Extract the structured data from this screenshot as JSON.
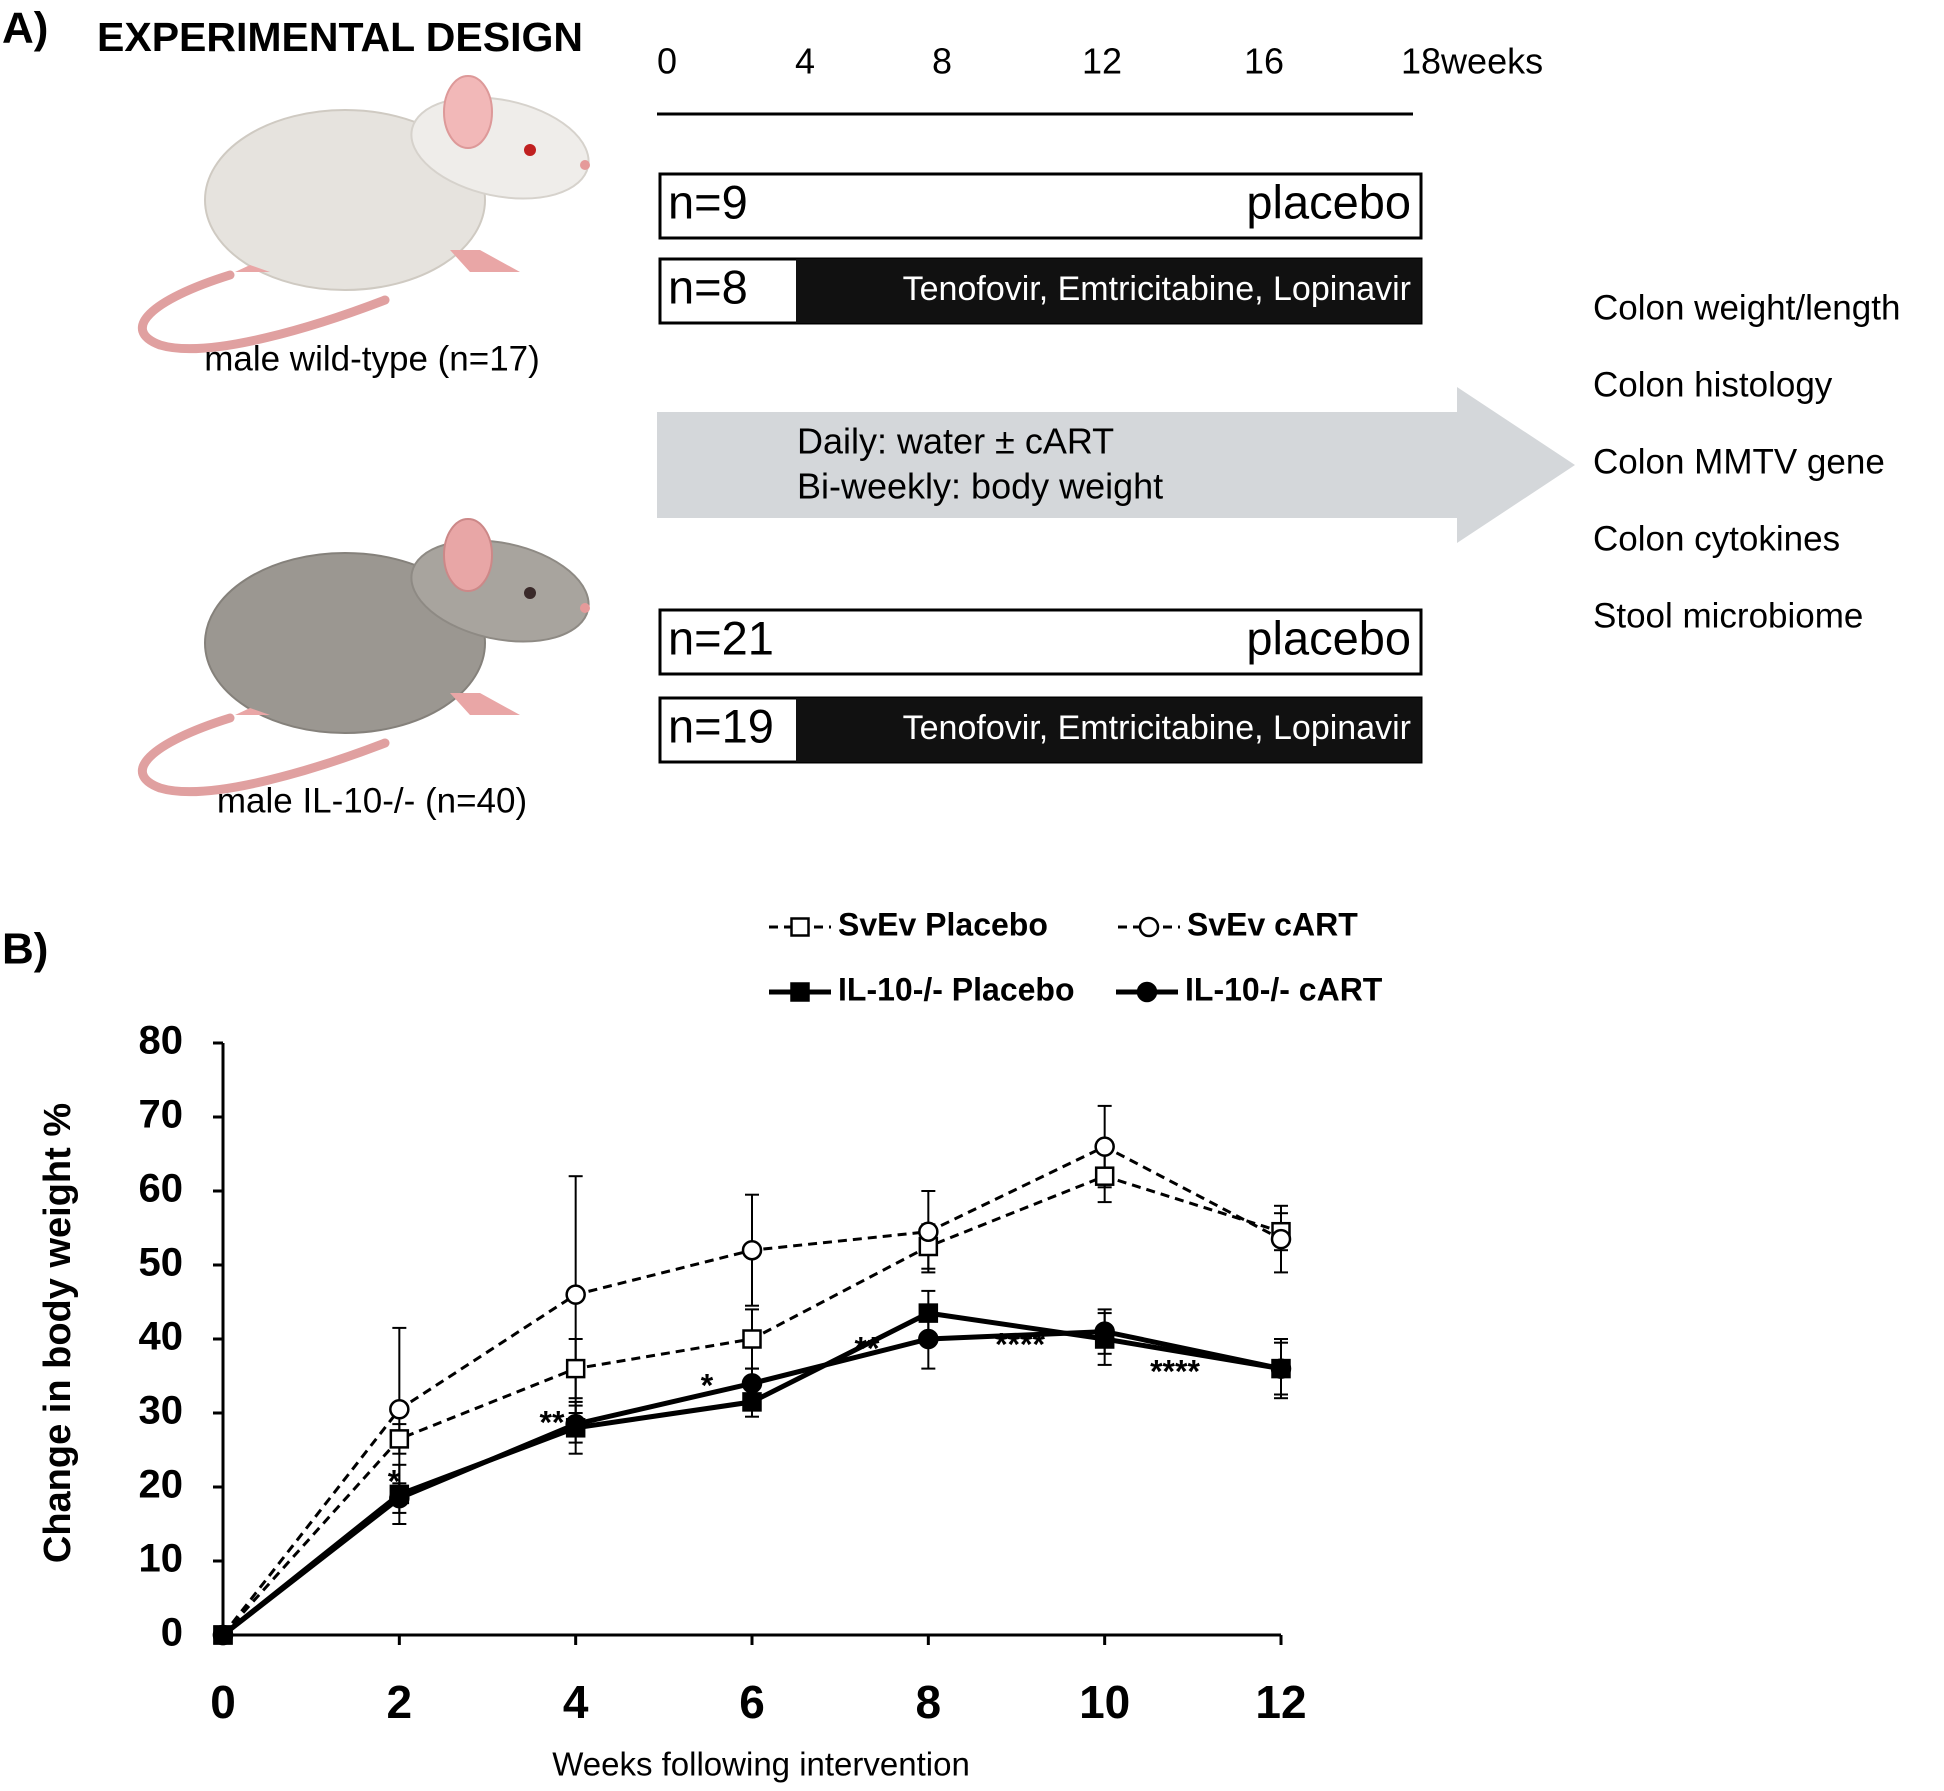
{
  "panel_a": {
    "label": "A)",
    "title": "EXPERIMENTAL DESIGN",
    "timeline": [
      "0",
      "4",
      "8",
      "12",
      "16",
      "18weeks"
    ],
    "groups": [
      {
        "caption": "male wild-type (n=17)",
        "arms": [
          {
            "n": "n=9",
            "treatment": "placebo"
          },
          {
            "n": "n=8",
            "treatment": "Tenofovir, Emtricitabine, Lopinavir"
          }
        ]
      },
      {
        "caption": "male IL-10-/- (n=40)",
        "arms": [
          {
            "n": "n=21",
            "treatment": "placebo"
          },
          {
            "n": "n=19",
            "treatment": "Tenofovir, Emtricitabine, Lopinavir"
          }
        ]
      }
    ],
    "arrow_text": [
      "Daily: water ± cART",
      "Bi-weekly: body weight"
    ],
    "outcomes": [
      "Colon weight/length",
      "Colon histology",
      "Colon MMTV gene",
      "Colon cytokines",
      "Stool microbiome"
    ]
  },
  "panel_b_label": "B)",
  "chart_data": {
    "type": "line",
    "x_label": "Weeks following intervention",
    "y_label": "Change in body weight %",
    "x": [
      0,
      2,
      4,
      6,
      8,
      10,
      12
    ],
    "xlim": [
      0,
      12
    ],
    "xticks": [
      0,
      2,
      4,
      6,
      8,
      10,
      12
    ],
    "ylim": [
      0,
      80
    ],
    "yticks": [
      0,
      10,
      20,
      30,
      40,
      50,
      60,
      70,
      80
    ],
    "grid": false,
    "series": [
      {
        "name": "SvEv Placebo",
        "color": "#000000",
        "marker": "square",
        "filled": false,
        "dashed": true,
        "values": [
          0,
          26.5,
          36,
          40,
          52.5,
          62,
          54.5
        ],
        "errors": [
          null,
          2,
          4,
          4,
          3,
          3.5,
          2.5
        ]
      },
      {
        "name": "SvEv cART",
        "color": "#000000",
        "marker": "circle",
        "filled": false,
        "dashed": true,
        "values": [
          0,
          30.5,
          46,
          52,
          54.5,
          66,
          53.5
        ],
        "errors": [
          null,
          11,
          16,
          7.5,
          5.5,
          5.5,
          4.5
        ]
      },
      {
        "name": "IL-10-/- Placebo",
        "color": "#000000",
        "marker": "square",
        "filled": true,
        "dashed": false,
        "values": [
          0,
          19,
          28,
          31.5,
          43.5,
          40,
          36
        ],
        "errors": [
          null,
          4,
          3.5,
          2,
          3,
          3.5,
          4
        ]
      },
      {
        "name": "IL-10-/- cART",
        "color": "#000000",
        "marker": "circle",
        "filled": true,
        "dashed": false,
        "values": [
          0,
          18.5,
          28.5,
          34,
          40,
          41,
          36
        ],
        "errors": [
          null,
          2,
          2.5,
          2,
          4,
          3,
          3.5
        ]
      }
    ],
    "annotations": [
      "*",
      "**",
      "*",
      "**",
      "****",
      "****"
    ]
  }
}
